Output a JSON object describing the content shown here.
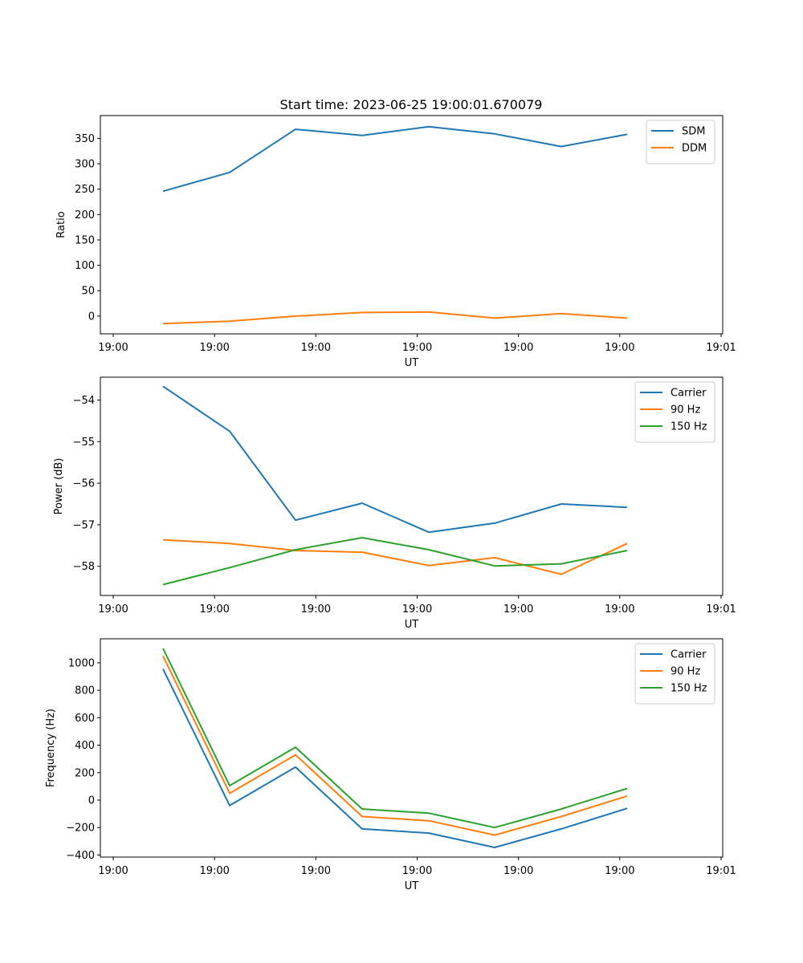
{
  "figure": {
    "title": "Start time: 2023-06-25 19:00:01.670079"
  },
  "chart_data": [
    {
      "type": "line",
      "title": "Start time: 2023-06-25 19:00:01.670079",
      "xlabel": "UT",
      "ylabel": "Ratio",
      "x_tick_labels": [
        "19:00",
        "19:00",
        "19:00",
        "19:00",
        "19:00",
        "19:00",
        "19:01"
      ],
      "y_ticks": [
        0,
        50,
        100,
        150,
        200,
        250,
        300,
        350
      ],
      "ylim": [
        -35,
        395
      ],
      "x_points": 8,
      "legend": "top-right",
      "grid": false,
      "series": [
        {
          "name": "SDM",
          "color": "#1f77b4",
          "values": [
            246,
            283,
            368,
            356,
            373,
            359,
            334,
            358
          ]
        },
        {
          "name": "DDM",
          "color": "#ff7f0e",
          "values": [
            -15,
            -10,
            0,
            7,
            8,
            -4,
            5,
            -4
          ]
        }
      ]
    },
    {
      "type": "line",
      "title": "",
      "xlabel": "UT",
      "ylabel": "Power (dB)",
      "x_tick_labels": [
        "19:00",
        "19:00",
        "19:00",
        "19:00",
        "19:00",
        "19:00",
        "19:01"
      ],
      "y_ticks": [
        -58,
        -57,
        -56,
        -55,
        -54
      ],
      "ylim": [
        -58.7,
        -53.45
      ],
      "x_points": 8,
      "legend": "top-right",
      "grid": false,
      "series": [
        {
          "name": "Carrier",
          "color": "#1f77b4",
          "values": [
            -53.67,
            -54.75,
            -56.89,
            -56.48,
            -57.18,
            -56.96,
            -56.5,
            -56.58
          ]
        },
        {
          "name": "90 Hz",
          "color": "#ff7f0e",
          "values": [
            -57.36,
            -57.45,
            -57.62,
            -57.66,
            -57.98,
            -57.79,
            -58.19,
            -57.45
          ]
        },
        {
          "name": "150 Hz",
          "color": "#2ca02c",
          "values": [
            -58.44,
            -58.03,
            -57.6,
            -57.31,
            -57.6,
            -57.99,
            -57.94,
            -57.62
          ]
        }
      ]
    },
    {
      "type": "line",
      "title": "",
      "xlabel": "UT",
      "ylabel": "Frequency (Hz)",
      "x_tick_labels": [
        "19:00",
        "19:00",
        "19:00",
        "19:00",
        "19:00",
        "19:00",
        "19:01"
      ],
      "y_ticks": [
        -400,
        -200,
        0,
        200,
        400,
        600,
        800,
        1000
      ],
      "ylim": [
        -415,
        1175
      ],
      "x_points": 8,
      "legend": "top-right",
      "grid": false,
      "series": [
        {
          "name": "Carrier",
          "color": "#1f77b4",
          "values": [
            955,
            -40,
            240,
            -210,
            -240,
            -345,
            -210,
            -60
          ]
        },
        {
          "name": "90 Hz",
          "color": "#ff7f0e",
          "values": [
            1050,
            50,
            330,
            -120,
            -150,
            -255,
            -120,
            30
          ]
        },
        {
          "name": "150 Hz",
          "color": "#2ca02c",
          "values": [
            1105,
            105,
            385,
            -65,
            -95,
            -200,
            -65,
            85
          ]
        }
      ]
    }
  ]
}
